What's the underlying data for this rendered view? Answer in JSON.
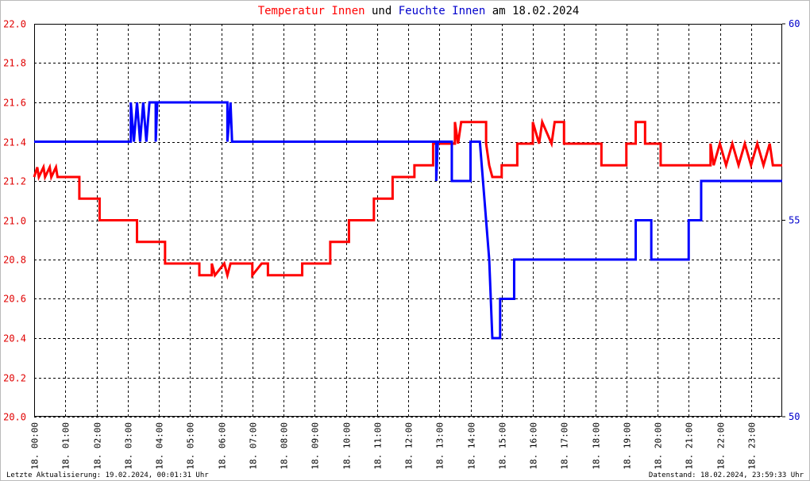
{
  "chart_data": {
    "type": "line",
    "title_joiner": "und",
    "title_suffix": "am 18.02.2024",
    "footer_left": "Letzte Aktualisierung: 19.02.2024, 00:01:31 Uhr",
    "footer_right": "Datenstand: 18.02.2024, 23:59:33 Uhr",
    "xlim": [
      0,
      24
    ],
    "xticks": [
      {
        "value": 0,
        "label": "18. 00:00"
      },
      {
        "value": 1,
        "label": "18. 01:00"
      },
      {
        "value": 2,
        "label": "18. 02:00"
      },
      {
        "value": 3,
        "label": "18. 03:00"
      },
      {
        "value": 4,
        "label": "18. 04:00"
      },
      {
        "value": 5,
        "label": "18. 05:00"
      },
      {
        "value": 6,
        "label": "18. 06:00"
      },
      {
        "value": 7,
        "label": "18. 07:00"
      },
      {
        "value": 8,
        "label": "18. 08:00"
      },
      {
        "value": 9,
        "label": "18. 09:00"
      },
      {
        "value": 10,
        "label": "18. 10:00"
      },
      {
        "value": 11,
        "label": "18. 11:00"
      },
      {
        "value": 12,
        "label": "18. 12:00"
      },
      {
        "value": 13,
        "label": "18. 13:00"
      },
      {
        "value": 14,
        "label": "18. 14:00"
      },
      {
        "value": 15,
        "label": "18. 15:00"
      },
      {
        "value": 16,
        "label": "18. 16:00"
      },
      {
        "value": 17,
        "label": "18. 17:00"
      },
      {
        "value": 18,
        "label": "18. 18:00"
      },
      {
        "value": 19,
        "label": "18. 19:00"
      },
      {
        "value": 20,
        "label": "18. 20:00"
      },
      {
        "value": 21,
        "label": "18. 21:00"
      },
      {
        "value": 22,
        "label": "18. 22:00"
      },
      {
        "value": 23,
        "label": "18. 23:00"
      }
    ],
    "ylim": [
      20,
      22
    ],
    "yticks": [
      {
        "value": 20,
        "label": "20.0"
      },
      20.2,
      20.4,
      20.6,
      20.8,
      {
        "value": 21,
        "label": "21.0"
      },
      21.2,
      21.4,
      21.6,
      21.8,
      {
        "value": 22,
        "label": "22.0"
      }
    ],
    "y2lim": [
      50,
      60
    ],
    "y2ticks": [
      50,
      55,
      60
    ],
    "grid": true,
    "y_color": "#e00000",
    "y2_color": "#0000cc",
    "series": [
      {
        "name": "Temperatur Innen",
        "color": "#ff0000",
        "x": [
          0,
          0.1,
          0.15,
          0.3,
          0.35,
          0.5,
          0.55,
          0.7,
          0.75,
          1.45,
          1.45,
          2.1,
          2.1,
          3.3,
          3.3,
          4.2,
          4.2,
          5.3,
          5.3,
          5.7,
          5.7,
          5.8,
          6.1,
          6.2,
          6.3,
          7.0,
          7.0,
          7.3,
          7.5,
          7.5,
          8.6,
          8.6,
          9.5,
          9.5,
          10.1,
          10.1,
          10.9,
          10.9,
          11.5,
          11.5,
          12.2,
          12.2,
          12.8,
          12.8,
          13.5,
          13.5,
          13.6,
          13.7,
          14.5,
          14.5,
          14.6,
          14.7,
          15.0,
          15.0,
          15.5,
          15.5,
          16.0,
          16.0,
          16.2,
          16.3,
          16.6,
          16.7,
          17.0,
          17.0,
          18.2,
          18.2,
          19.0,
          19.0,
          19.3,
          19.3,
          19.6,
          19.6,
          20.1,
          20.1,
          21.7,
          21.7,
          21.8,
          22.0,
          22.2,
          22.4,
          22.6,
          22.8,
          23.0,
          23.2,
          23.4,
          23.6,
          23.7,
          24
        ],
        "values": [
          21.22,
          21.27,
          21.22,
          21.27,
          21.22,
          21.27,
          21.22,
          21.27,
          21.22,
          21.22,
          21.11,
          21.11,
          21.0,
          21.0,
          20.89,
          20.89,
          20.78,
          20.78,
          20.72,
          20.72,
          20.78,
          20.72,
          20.78,
          20.72,
          20.78,
          20.78,
          20.72,
          20.78,
          20.78,
          20.72,
          20.72,
          20.78,
          20.78,
          20.89,
          20.89,
          21.0,
          21.0,
          21.11,
          21.11,
          21.22,
          21.22,
          21.28,
          21.28,
          21.39,
          21.39,
          21.5,
          21.39,
          21.5,
          21.5,
          21.39,
          21.28,
          21.22,
          21.22,
          21.28,
          21.28,
          21.39,
          21.39,
          21.5,
          21.39,
          21.5,
          21.39,
          21.5,
          21.5,
          21.39,
          21.39,
          21.28,
          21.28,
          21.39,
          21.39,
          21.5,
          21.5,
          21.39,
          21.39,
          21.28,
          21.28,
          21.39,
          21.28,
          21.39,
          21.28,
          21.39,
          21.28,
          21.39,
          21.28,
          21.39,
          21.28,
          21.39,
          21.28,
          21.28
        ]
      },
      {
        "name": "Feuchte Innen",
        "color": "#0000ff",
        "axis": "y2",
        "x": [
          0,
          3.1,
          3.1,
          3.2,
          3.3,
          3.4,
          3.5,
          3.6,
          3.7,
          3.9,
          3.9,
          3.95,
          6.2,
          6.2,
          6.3,
          6.35,
          12.9,
          12.9,
          12.95,
          13.4,
          13.4,
          14.0,
          14.0,
          14.3,
          14.4,
          14.5,
          14.6,
          14.65,
          14.7,
          14.95,
          14.95,
          15.4,
          15.4,
          19.3,
          19.3,
          19.8,
          19.8,
          21.0,
          21.0,
          21.4,
          21.4,
          24
        ],
        "values": [
          57,
          57,
          58,
          57,
          58,
          57,
          58,
          57,
          58,
          58,
          57,
          58,
          58,
          57,
          58,
          57,
          57,
          56,
          57,
          57,
          56,
          56,
          57,
          57,
          56,
          55,
          54,
          53,
          52,
          52,
          53,
          53,
          54,
          54,
          55,
          55,
          54,
          54,
          55,
          55,
          56,
          56
        ]
      }
    ]
  }
}
